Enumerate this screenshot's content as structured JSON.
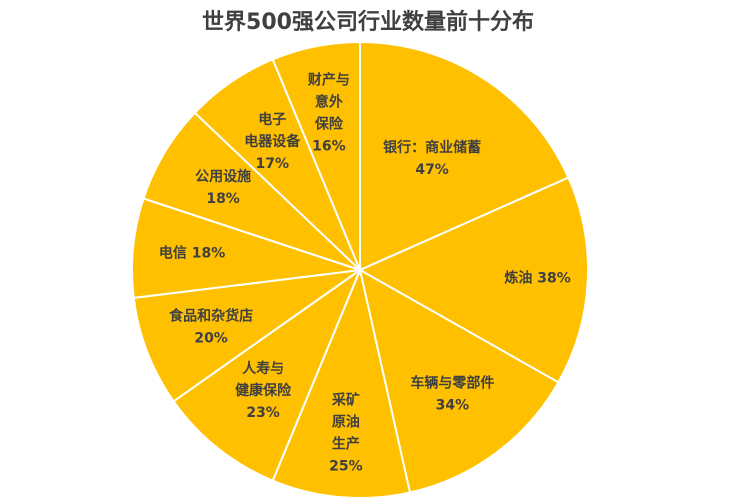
{
  "chart_data": {
    "type": "pie",
    "title": "世界500强公司行业数量前十分布",
    "slices": [
      {
        "label_lines": [
          "银行：商业储蓄",
          "47%"
        ],
        "value": 47
      },
      {
        "label_lines": [
          "炼油 38%"
        ],
        "value": 38
      },
      {
        "label_lines": [
          "车辆与零部件",
          "34%"
        ],
        "value": 34
      },
      {
        "label_lines": [
          "采矿",
          "原油",
          "生产",
          "25%"
        ],
        "value": 25
      },
      {
        "label_lines": [
          "人寿与",
          "健康保险",
          "23%"
        ],
        "value": 23
      },
      {
        "label_lines": [
          "食品和杂货店",
          "20%"
        ],
        "value": 20
      },
      {
        "label_lines": [
          "电信 18%"
        ],
        "value": 18
      },
      {
        "label_lines": [
          "公用设施",
          "18%"
        ],
        "value": 18
      },
      {
        "label_lines": [
          "电子",
          "电器设备",
          "17%"
        ],
        "value": 17
      },
      {
        "label_lines": [
          "财产与",
          "意外",
          "保险",
          "16%"
        ],
        "value": 16
      }
    ],
    "colors": {
      "fill": "#FFC000",
      "stroke": "#FFFFFF",
      "label": "#404040"
    }
  }
}
